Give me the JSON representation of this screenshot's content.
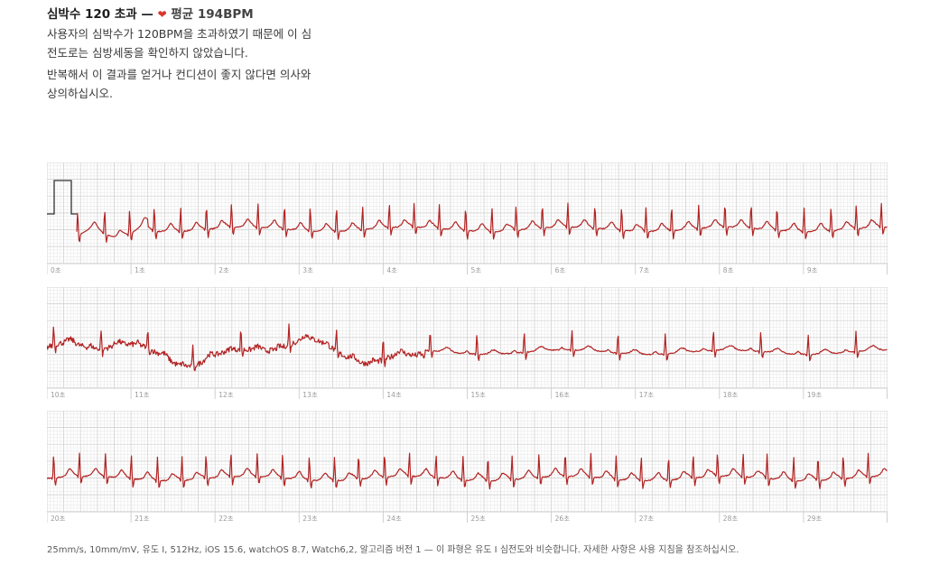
{
  "header": {
    "title_prefix": "심박수 120 초과 —",
    "heart_icon": "heart-icon",
    "avg_text": "평균 194BPM",
    "paragraph1": "사용자의 심박수가 120BPM을 초과하였기 때문에 이 심전도로는 심방세동을 확인하지 않았습니다.",
    "paragraph2": "반복해서 이 결과를 얻거나 컨디션이 좋지 않다면 의사와 상의하십시오."
  },
  "strips": [
    {
      "labels": [
        "0초",
        "1초",
        "2초",
        "3초",
        "4초",
        "5초",
        "6초",
        "7초",
        "8초",
        "9초"
      ]
    },
    {
      "labels": [
        "10초",
        "11초",
        "12초",
        "13초",
        "14초",
        "15초",
        "16초",
        "17초",
        "18초",
        "19초"
      ]
    },
    {
      "labels": [
        "20초",
        "21초",
        "22초",
        "23초",
        "24초",
        "25초",
        "26초",
        "27초",
        "28초",
        "29초"
      ]
    }
  ],
  "footer": "25mm/s, 10mm/mV, 유도 I, 512Hz, iOS 15.6, watchOS 8.7, Watch6,2, 알고리즘 버전 1 — 이 파형은 유도 I 심전도와 비슷합니다. 자세한 사항은 사용 지침을 참조하십시오.",
  "colors": {
    "trace": "#b22222",
    "grid_minor": "#e9e9e9",
    "grid_major": "#cfcfcf",
    "heart": "#d9362b"
  }
}
